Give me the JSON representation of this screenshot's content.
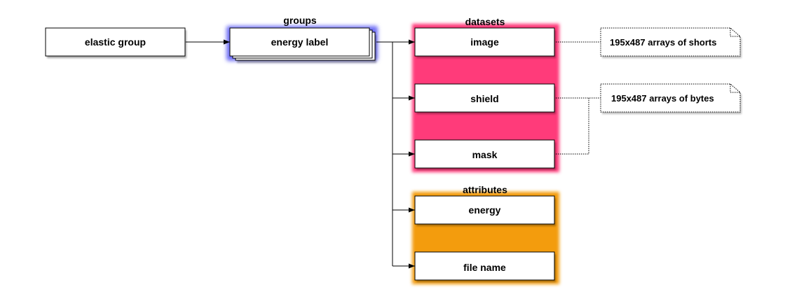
{
  "colors": {
    "groups_glow": "#6f6ff5",
    "datasets_fill": "#ff3a7a",
    "attributes_fill": "#f39c0a"
  },
  "clusters": {
    "groups": {
      "title": "groups"
    },
    "datasets": {
      "title": "datasets"
    },
    "attributes": {
      "title": "attributes"
    }
  },
  "nodes": {
    "elastic_group": "elastic group",
    "energy_label": "energy label",
    "image": "image",
    "shield": "shield",
    "mask": "mask",
    "energy": "energy",
    "file_name": "file name"
  },
  "notes": {
    "shorts": "195x487 arrays of shorts",
    "bytes": "195x487 arrays of bytes"
  }
}
